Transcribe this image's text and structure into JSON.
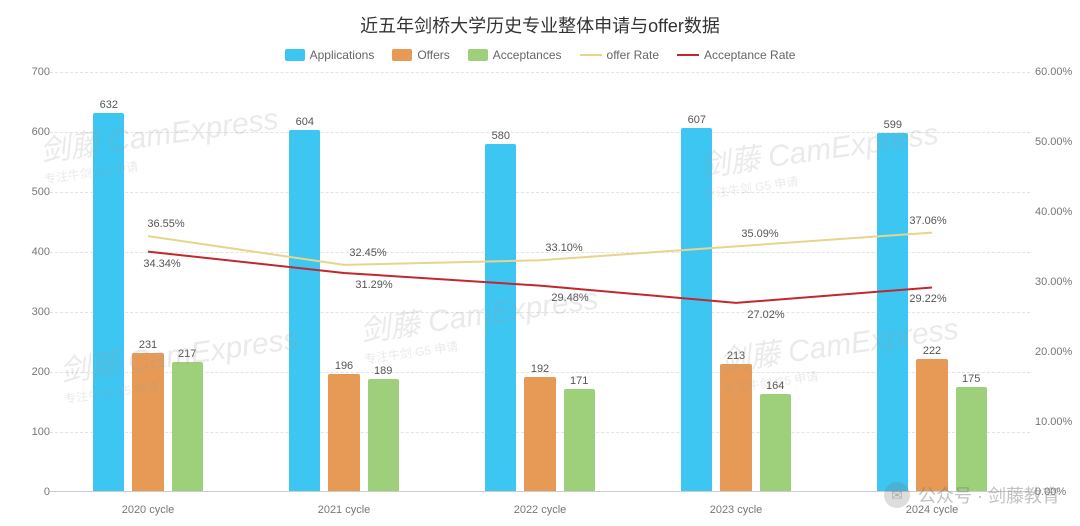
{
  "title": "近五年剑桥大学历史专业整体申请与offer数据",
  "legend": {
    "applications": "Applications",
    "offers": "Offers",
    "acceptances": "Acceptances",
    "offer_rate": "offer Rate",
    "acceptance_rate": "Acceptance Rate"
  },
  "chart": {
    "type": "bar+line",
    "categories": [
      "2020 cycle",
      "2021 cycle",
      "2022 cycle",
      "2023 cycle",
      "2024 cycle"
    ],
    "bars": {
      "applications": [
        632,
        604,
        580,
        607,
        599
      ],
      "offers": [
        231,
        196,
        192,
        213,
        222
      ],
      "acceptances": [
        217,
        189,
        171,
        164,
        175
      ]
    },
    "lines": {
      "offer_rate": [
        36.55,
        32.45,
        33.1,
        35.09,
        37.06
      ],
      "acceptance_rate": [
        34.34,
        31.29,
        29.48,
        27.02,
        29.22
      ]
    },
    "line_labels": {
      "offer_rate": [
        "36.55%",
        "32.45%",
        "33.10%",
        "35.09%",
        "37.06%"
      ],
      "acceptance_rate": [
        "34.34%",
        "31.29%",
        "29.48%",
        "27.02%",
        "29.22%"
      ]
    },
    "colors": {
      "applications": "#3dc6f2",
      "offers": "#e69a56",
      "acceptances": "#9ecf7a",
      "offer_rate": "#e8d48a",
      "acceptance_rate": "#c1272d",
      "grid": "#e3e3e3",
      "text": "#555555",
      "background": "#ffffff"
    },
    "left_axis": {
      "min": 0,
      "max": 700,
      "step": 100
    },
    "right_axis": {
      "min": 0,
      "max": 60,
      "step": 10,
      "suffix": "%",
      "decimals": 2
    },
    "bar_width_ratio": 0.16,
    "bar_gap_ratio": 0.04,
    "line_width": 2,
    "title_fontsize": 18,
    "label_fontsize": 11
  },
  "watermark": {
    "main": "CamExpress",
    "sub": "专注牛剑 G5 申请",
    "cn": "剑藤"
  },
  "footer": "公众号 · 剑藤教育"
}
